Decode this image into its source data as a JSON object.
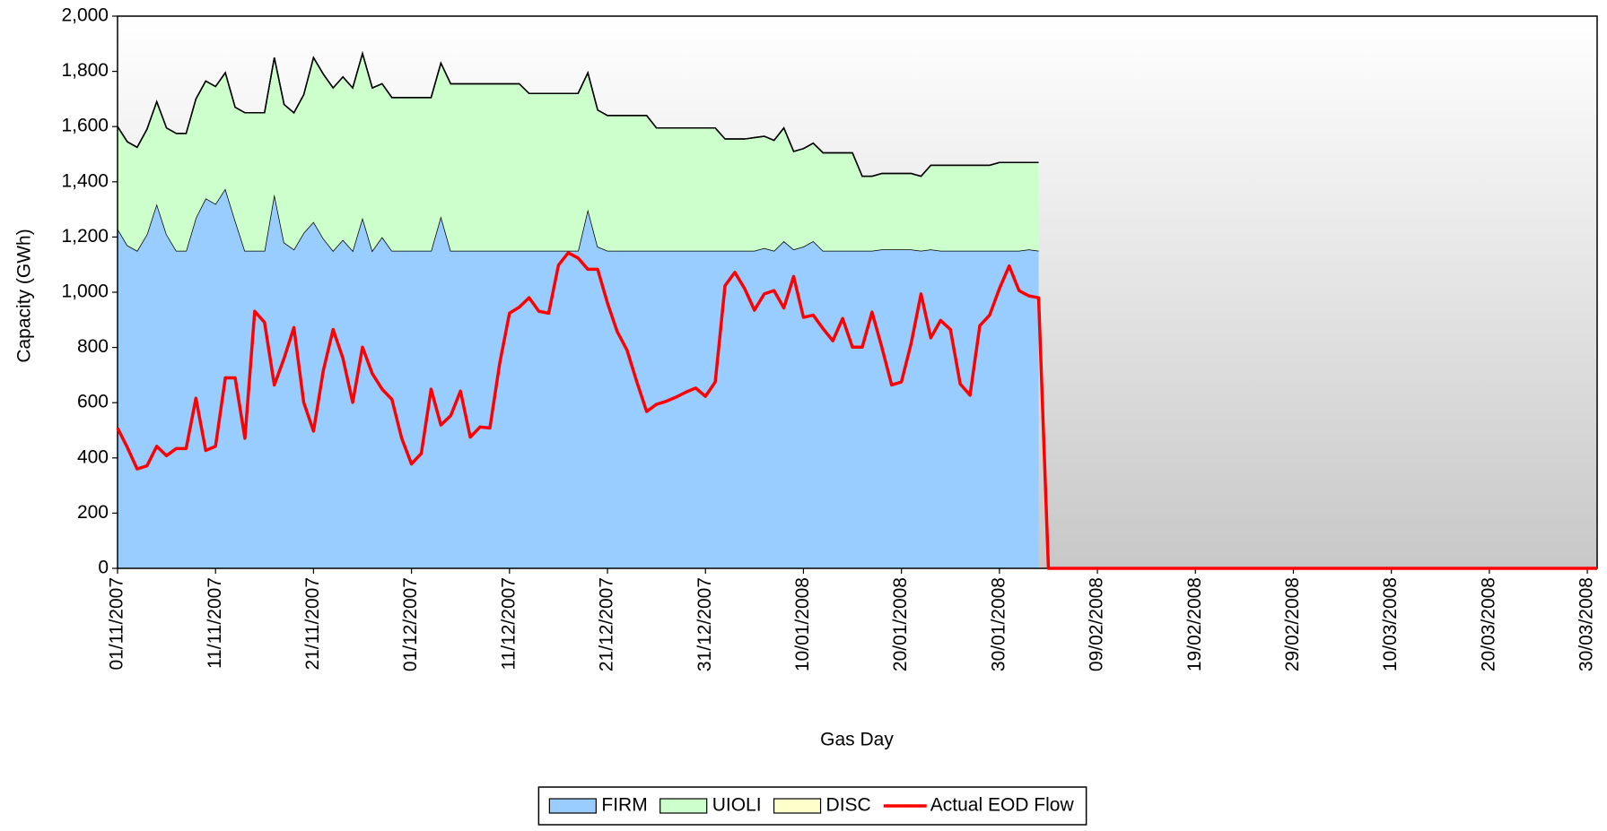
{
  "chart_data": {
    "type": "area",
    "xlabel": "Gas Day",
    "ylabel": "Capacity (GWh)",
    "x": [
      "01/11/2007",
      "02/11/2007",
      "03/11/2007",
      "04/11/2007",
      "05/11/2007",
      "06/11/2007",
      "07/11/2007",
      "08/11/2007",
      "09/11/2007",
      "10/11/2007",
      "11/11/2007",
      "12/11/2007",
      "13/11/2007",
      "14/11/2007",
      "15/11/2007",
      "16/11/2007",
      "17/11/2007",
      "18/11/2007",
      "19/11/2007",
      "20/11/2007",
      "21/11/2007",
      "22/11/2007",
      "23/11/2007",
      "24/11/2007",
      "25/11/2007",
      "26/11/2007",
      "27/11/2007",
      "28/11/2007",
      "29/11/2007",
      "30/11/2007",
      "01/12/2007",
      "02/12/2007",
      "03/12/2007",
      "04/12/2007",
      "05/12/2007",
      "06/12/2007",
      "07/12/2007",
      "08/12/2007",
      "09/12/2007",
      "10/12/2007",
      "11/12/2007",
      "12/12/2007",
      "13/12/2007",
      "14/12/2007",
      "15/12/2007",
      "16/12/2007",
      "17/12/2007",
      "18/12/2007",
      "19/12/2007",
      "20/12/2007",
      "21/12/2007",
      "22/12/2007",
      "23/12/2007",
      "24/12/2007",
      "25/12/2007",
      "26/12/2007",
      "27/12/2007",
      "28/12/2007",
      "29/12/2007",
      "30/12/2007",
      "31/12/2007",
      "01/01/2008",
      "02/01/2008",
      "03/01/2008",
      "04/01/2008",
      "05/01/2008",
      "06/01/2008",
      "07/01/2008",
      "08/01/2008",
      "09/01/2008",
      "10/01/2008",
      "11/01/2008",
      "12/01/2008",
      "13/01/2008",
      "14/01/2008",
      "15/01/2008",
      "16/01/2008",
      "17/01/2008",
      "18/01/2008",
      "19/01/2008",
      "20/01/2008",
      "21/01/2008",
      "22/01/2008",
      "23/01/2008",
      "24/01/2008",
      "25/01/2008",
      "26/01/2008",
      "27/01/2008",
      "28/01/2008",
      "29/01/2008",
      "30/01/2008",
      "31/01/2008",
      "01/02/2008",
      "02/02/2008",
      "03/02/2008",
      "04/02/2008",
      "05/02/2008",
      "06/02/2008",
      "07/02/2008",
      "08/02/2008",
      "09/02/2008",
      "10/02/2008",
      "11/02/2008",
      "12/02/2008",
      "13/02/2008",
      "14/02/2008",
      "15/02/2008",
      "16/02/2008",
      "17/02/2008",
      "18/02/2008",
      "19/02/2008",
      "20/02/2008",
      "21/02/2008",
      "22/02/2008",
      "23/02/2008",
      "24/02/2008",
      "25/02/2008",
      "26/02/2008",
      "27/02/2008",
      "28/02/2008",
      "29/02/2008",
      "01/03/2008",
      "02/03/2008",
      "03/03/2008",
      "04/03/2008",
      "05/03/2008",
      "06/03/2008",
      "07/03/2008",
      "08/03/2008",
      "09/03/2008",
      "10/03/2008",
      "11/03/2008",
      "12/03/2008",
      "13/03/2008",
      "14/03/2008",
      "15/03/2008",
      "16/03/2008",
      "17/03/2008",
      "18/03/2008",
      "19/03/2008",
      "20/03/2008",
      "21/03/2008",
      "22/03/2008",
      "23/03/2008",
      "24/03/2008",
      "25/03/2008",
      "26/03/2008",
      "27/03/2008",
      "28/03/2008",
      "29/03/2008",
      "30/03/2008",
      "31/03/2008"
    ],
    "xticks": [
      "01/11/2007",
      "11/11/2007",
      "21/11/2007",
      "01/12/2007",
      "11/12/2007",
      "21/12/2007",
      "31/12/2007",
      "10/01/2008",
      "20/01/2008",
      "30/01/2008",
      "09/02/2008",
      "19/02/2008",
      "29/02/2008",
      "10/03/2008",
      "20/03/2008",
      "30/03/2008"
    ],
    "ylim": [
      0,
      2000
    ],
    "yticks": [
      0,
      200,
      400,
      600,
      800,
      {
        "value": 1000,
        "label": "1,000"
      },
      {
        "value": 1200,
        "label": "1,200"
      },
      {
        "value": 1400,
        "label": "1,400"
      },
      {
        "value": 1600,
        "label": "1,600"
      },
      {
        "value": 1800,
        "label": "1,800"
      },
      {
        "value": 2000,
        "label": "2,000"
      }
    ],
    "legend": "bottom",
    "series": [
      {
        "name": "FIRM",
        "type": "area",
        "color": "#99ccff",
        "values": [
          1230,
          1170,
          1150,
          1210,
          1320,
          1210,
          1150,
          1150,
          1270,
          1340,
          1320,
          1375,
          1260,
          1150,
          1150,
          1150,
          1355,
          1180,
          1155,
          1215,
          1255,
          1195,
          1150,
          1190,
          1150,
          1270,
          1150,
          1200,
          1150,
          1150,
          1150,
          1150,
          1150,
          1275,
          1150,
          1150,
          1150,
          1150,
          1150,
          1150,
          1150,
          1150,
          1150,
          1150,
          1150,
          1150,
          1150,
          1150,
          1300,
          1165,
          1150,
          1150,
          1150,
          1150,
          1150,
          1150,
          1150,
          1150,
          1150,
          1150,
          1150,
          1150,
          1150,
          1150,
          1150,
          1150,
          1160,
          1150,
          1185,
          1155,
          1165,
          1185,
          1150,
          1150,
          1150,
          1150,
          1150,
          1150,
          1155,
          1155,
          1155,
          1155,
          1150,
          1155,
          1150,
          1150,
          1150,
          1150,
          1150,
          1150,
          1150,
          1150,
          1150,
          1155,
          1150,
          null,
          null,
          null,
          null,
          null,
          null,
          null,
          null,
          null,
          null,
          null,
          null,
          null,
          null,
          null,
          null,
          null,
          null,
          null,
          null,
          null,
          null,
          null,
          null,
          null,
          null,
          null,
          null,
          null,
          null,
          null,
          null,
          null,
          null,
          null,
          null,
          null,
          null,
          null,
          null,
          null,
          null,
          null,
          null,
          null,
          null,
          null,
          null,
          null,
          null,
          null,
          null,
          null,
          null,
          null,
          null,
          null
        ]
      },
      {
        "name": "UIOLI",
        "type": "area",
        "color": "#ccffcc",
        "values": [
          370,
          375,
          375,
          380,
          370,
          385,
          425,
          425,
          430,
          425,
          425,
          420,
          410,
          500,
          500,
          500,
          495,
          500,
          495,
          500,
          595,
          595,
          590,
          590,
          590,
          595,
          590,
          555,
          555,
          555,
          555,
          555,
          555,
          555,
          605,
          605,
          605,
          605,
          605,
          605,
          605,
          605,
          570,
          570,
          570,
          570,
          570,
          570,
          495,
          495,
          490,
          490,
          490,
          490,
          490,
          445,
          445,
          445,
          445,
          445,
          445,
          445,
          405,
          405,
          405,
          410,
          405,
          400,
          410,
          355,
          355,
          355,
          355,
          355,
          355,
          355,
          270,
          270,
          275,
          275,
          275,
          275,
          270,
          305,
          310,
          310,
          310,
          310,
          310,
          310,
          320,
          320,
          320,
          315,
          320,
          null,
          null,
          null,
          null,
          null,
          null,
          null,
          null,
          null,
          null,
          null,
          null,
          null,
          null,
          null,
          null,
          null,
          null,
          null,
          null,
          null,
          null,
          null,
          null,
          null,
          null,
          null,
          null,
          null,
          null,
          null,
          null,
          null,
          null,
          null,
          null,
          null,
          null,
          null,
          null,
          null,
          null,
          null,
          null,
          null,
          null,
          null,
          null,
          null,
          null,
          null,
          null,
          null,
          null,
          null,
          null,
          null
        ]
      },
      {
        "name": "DISC",
        "type": "area",
        "color": "#ffffcc",
        "values": [
          0,
          0,
          0,
          0,
          0,
          0,
          0,
          0,
          0,
          0,
          0,
          0,
          0,
          0,
          0,
          0,
          0,
          0,
          0,
          0,
          0,
          0,
          0,
          0,
          0,
          0,
          0,
          0,
          0,
          0,
          0,
          0,
          0,
          0,
          0,
          0,
          0,
          0,
          0,
          0,
          0,
          0,
          0,
          0,
          0,
          0,
          0,
          0,
          0,
          0,
          0,
          0,
          0,
          0,
          0,
          0,
          0,
          0,
          0,
          0,
          0,
          0,
          0,
          0,
          0,
          0,
          0,
          0,
          0,
          0,
          0,
          0,
          0,
          0,
          0,
          0,
          0,
          0,
          0,
          0,
          0,
          0,
          0,
          0,
          0,
          0,
          0,
          0,
          0,
          0,
          0,
          0,
          0,
          0,
          0,
          null,
          null,
          null,
          null,
          null,
          null,
          null,
          null,
          null,
          null,
          null,
          null,
          null,
          null,
          null,
          null,
          null,
          null,
          null,
          null,
          null,
          null,
          null,
          null,
          null,
          null,
          null,
          null,
          null,
          null,
          null,
          null,
          null,
          null,
          null,
          null,
          null,
          null,
          null,
          null,
          null,
          null,
          null,
          null,
          null,
          null,
          null,
          null,
          null,
          null,
          null,
          null,
          null,
          null,
          null,
          null,
          null
        ]
      },
      {
        "name": "Actual EOD Flow",
        "type": "line",
        "color": "#ff0000",
        "values": [
          508,
          438,
          360,
          371,
          442,
          408,
          434,
          434,
          616,
          427,
          442,
          690,
          690,
          471,
          931,
          891,
          664,
          761,
          872,
          601,
          497,
          716,
          865,
          761,
          601,
          801,
          705,
          649,
          612,
          471,
          378,
          416,
          649,
          519,
          553,
          642,
          475,
          512,
          508,
          742,
          924,
          946,
          980,
          931,
          924,
          1098,
          1143,
          1124,
          1083,
          1083,
          961,
          857,
          790,
          675,
          568,
          594,
          605,
          620,
          638,
          653,
          623,
          675,
          1024,
          1072,
          1013,
          935,
          994,
          1006,
          943,
          1057,
          909,
          917,
          868,
          824,
          905,
          801,
          801,
          928,
          801,
          664,
          675,
          816,
          994,
          835,
          898,
          865,
          668,
          627,
          879,
          917,
          1013,
          1095,
          1006,
          987,
          980,
          0,
          0,
          0,
          0,
          0,
          0,
          0,
          0,
          0,
          0,
          0,
          0,
          0,
          0,
          0,
          0,
          0,
          0,
          0,
          0,
          0,
          0,
          0,
          0,
          0,
          0,
          0,
          0,
          0,
          0,
          0,
          0,
          0,
          0,
          0,
          0,
          0,
          0,
          0,
          0,
          0,
          0,
          0,
          0,
          0,
          0,
          0,
          0,
          0,
          0,
          0,
          0,
          0,
          0,
          0,
          0,
          0
        ]
      }
    ]
  }
}
